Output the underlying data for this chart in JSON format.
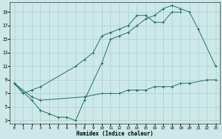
{
  "xlabel": "Humidex (Indice chaleur)",
  "background_color": "#cce8e8",
  "grid_color": "#aacece",
  "line_color": "#1a6b5a",
  "xlim": [
    -0.5,
    23.5
  ],
  "ylim": [
    2.5,
    20.5
  ],
  "xticks": [
    0,
    1,
    2,
    3,
    4,
    5,
    6,
    7,
    8,
    9,
    10,
    11,
    12,
    13,
    14,
    15,
    16,
    17,
    18,
    19,
    20,
    21,
    22,
    23
  ],
  "yticks": [
    3,
    5,
    7,
    9,
    11,
    13,
    15,
    17,
    19
  ],
  "line1_x": [
    0,
    1,
    2,
    3,
    7,
    8,
    9,
    10,
    11,
    12,
    13,
    14,
    15,
    16,
    17,
    18,
    19
  ],
  "line1_y": [
    8.5,
    7.0,
    7.5,
    8.0,
    11.0,
    12.0,
    13.0,
    15.5,
    16.0,
    16.5,
    17.0,
    18.5,
    18.5,
    17.5,
    17.5,
    19.0,
    19.0
  ],
  "line2_x": [
    0,
    2,
    3,
    4,
    5,
    6,
    7,
    8,
    10,
    11,
    12,
    13,
    14,
    15,
    16,
    17,
    18,
    19,
    20,
    21,
    23
  ],
  "line2_y": [
    8.5,
    6.0,
    4.5,
    4.0,
    3.5,
    3.5,
    3.0,
    6.0,
    11.5,
    15.0,
    15.5,
    16.0,
    17.0,
    18.0,
    18.5,
    19.5,
    20.0,
    19.5,
    19.0,
    16.5,
    11.0
  ],
  "line3_x": [
    0,
    2,
    3,
    8,
    10,
    11,
    12,
    13,
    14,
    15,
    16,
    17,
    18,
    19,
    20,
    22,
    23
  ],
  "line3_y": [
    8.5,
    6.5,
    6.0,
    6.5,
    7.0,
    7.0,
    7.0,
    7.5,
    7.5,
    7.5,
    8.0,
    8.0,
    8.0,
    8.5,
    8.5,
    9.0,
    9.0
  ]
}
